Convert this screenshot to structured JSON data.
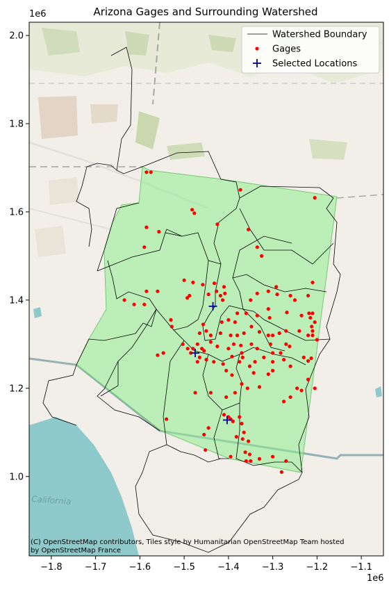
{
  "title": "Arizona Gages and Surrounding Watershed",
  "legend": {
    "placement": "top-right",
    "items": [
      {
        "label": "Watershed Boundary",
        "kind": "line",
        "color": "#000000"
      },
      {
        "label": "Gages",
        "kind": "dot",
        "color": "#ff0000"
      },
      {
        "label": "Selected Locations",
        "kind": "plus",
        "color": "#00008b"
      }
    ]
  },
  "axes": {
    "x_exponent": "1e6",
    "y_exponent": "1e6",
    "x_ticks": [
      "−1.8",
      "−1.7",
      "−1.6",
      "−1.5",
      "−1.4",
      "−1.3",
      "−1.2",
      "−1.1"
    ],
    "y_ticks": [
      "1.0",
      "1.2",
      "1.4",
      "1.6",
      "1.8",
      "2.0"
    ]
  },
  "attribution": {
    "line1": "(C) OpenStreetMap contributors, Tiles style by Humanitarian OpenStreetMap Team hosted",
    "line2": "by OpenStreetMap France"
  },
  "basemap_labels": {
    "california": "California"
  },
  "colors": {
    "state_fill": "#90ee90",
    "gage": "#ff0000",
    "selected": "#00008b",
    "water": "#8ec9cc",
    "land": "#f1efe8"
  },
  "chart_data": {
    "type": "scatter",
    "title": "Arizona Gages and Surrounding Watershed",
    "xlim": [
      -1.85,
      -1.05
    ],
    "ylim": [
      0.82,
      2.03
    ],
    "units_scale": "1e6",
    "series": [
      {
        "name": "Gages",
        "points": [
          [
            -1.585,
            1.69
          ],
          [
            -1.575,
            1.69
          ],
          [
            -1.373,
            1.65
          ],
          [
            -1.205,
            1.632
          ],
          [
            -1.482,
            1.605
          ],
          [
            -1.477,
            1.597
          ],
          [
            -1.585,
            1.565
          ],
          [
            -1.557,
            1.555
          ],
          [
            -1.425,
            1.572
          ],
          [
            -1.355,
            1.56
          ],
          [
            -1.59,
            1.52
          ],
          [
            -1.335,
            1.52
          ],
          [
            -1.325,
            1.5
          ],
          [
            -1.5,
            1.445
          ],
          [
            -1.48,
            1.44
          ],
          [
            -1.458,
            1.435
          ],
          [
            -1.432,
            1.438
          ],
          [
            -1.41,
            1.43
          ],
          [
            -1.445,
            1.413
          ],
          [
            -1.427,
            1.42
          ],
          [
            -1.418,
            1.41
          ],
          [
            -1.408,
            1.415
          ],
          [
            -1.413,
            1.4
          ],
          [
            -1.488,
            1.41
          ],
          [
            -1.493,
            1.405
          ],
          [
            -1.56,
            1.42
          ],
          [
            -1.585,
            1.42
          ],
          [
            -1.59,
            1.39
          ],
          [
            -1.635,
            1.4
          ],
          [
            -1.613,
            1.39
          ],
          [
            -1.292,
            1.43
          ],
          [
            -1.31,
            1.42
          ],
          [
            -1.335,
            1.415
          ],
          [
            -1.29,
            1.413
          ],
          [
            -1.26,
            1.41
          ],
          [
            -1.25,
            1.4
          ],
          [
            -1.22,
            1.41
          ],
          [
            -1.21,
            1.44
          ],
          [
            -1.35,
            1.4
          ],
          [
            -1.31,
            1.38
          ],
          [
            -1.268,
            1.372
          ],
          [
            -1.235,
            1.365
          ],
          [
            -1.218,
            1.37
          ],
          [
            -1.21,
            1.37
          ],
          [
            -1.38,
            1.37
          ],
          [
            -1.36,
            1.37
          ],
          [
            -1.335,
            1.365
          ],
          [
            -1.307,
            1.36
          ],
          [
            -1.385,
            1.35
          ],
          [
            -1.4,
            1.355
          ],
          [
            -1.415,
            1.35
          ],
          [
            -1.53,
            1.355
          ],
          [
            -1.528,
            1.34
          ],
          [
            -1.457,
            1.345
          ],
          [
            -1.45,
            1.33
          ],
          [
            -1.465,
            1.325
          ],
          [
            -1.44,
            1.32
          ],
          [
            -1.418,
            1.325
          ],
          [
            -1.395,
            1.32
          ],
          [
            -1.38,
            1.32
          ],
          [
            -1.365,
            1.325
          ],
          [
            -1.348,
            1.34
          ],
          [
            -1.33,
            1.328
          ],
          [
            -1.31,
            1.32
          ],
          [
            -1.3,
            1.32
          ],
          [
            -1.285,
            1.325
          ],
          [
            -1.27,
            1.33
          ],
          [
            -1.24,
            1.33
          ],
          [
            -1.22,
            1.32
          ],
          [
            -1.21,
            1.32
          ],
          [
            -1.2,
            1.31
          ],
          [
            -1.21,
            1.33
          ],
          [
            -1.212,
            1.34
          ],
          [
            -1.205,
            1.35
          ],
          [
            -1.215,
            1.36
          ],
          [
            -1.44,
            1.305
          ],
          [
            -1.46,
            1.29
          ],
          [
            -1.47,
            1.3
          ],
          [
            -1.425,
            1.295
          ],
          [
            -1.4,
            1.29
          ],
          [
            -1.388,
            1.3
          ],
          [
            -1.372,
            1.297
          ],
          [
            -1.348,
            1.3
          ],
          [
            -1.335,
            1.29
          ],
          [
            -1.305,
            1.3
          ],
          [
            -1.27,
            1.3
          ],
          [
            -1.262,
            1.295
          ],
          [
            -1.455,
            1.285
          ],
          [
            -1.48,
            1.29
          ],
          [
            -1.503,
            1.3
          ],
          [
            -1.492,
            1.29
          ],
          [
            -1.485,
            1.28
          ],
          [
            -1.465,
            1.27
          ],
          [
            -1.45,
            1.265
          ],
          [
            -1.433,
            1.26
          ],
          [
            -1.412,
            1.255
          ],
          [
            -1.392,
            1.272
          ],
          [
            -1.37,
            1.28
          ],
          [
            -1.368,
            1.27
          ],
          [
            -1.375,
            1.26
          ],
          [
            -1.32,
            1.27
          ],
          [
            -1.3,
            1.28
          ],
          [
            -1.282,
            1.28
          ],
          [
            -1.275,
            1.265
          ],
          [
            -1.26,
            1.25
          ],
          [
            -1.23,
            1.27
          ],
          [
            -1.22,
            1.262
          ],
          [
            -1.213,
            1.268
          ],
          [
            -1.3,
            1.26
          ],
          [
            -1.352,
            1.25
          ],
          [
            -1.34,
            1.26
          ],
          [
            -1.547,
            1.28
          ],
          [
            -1.56,
            1.275
          ],
          [
            -1.47,
            1.26
          ],
          [
            -1.3,
            1.24
          ],
          [
            -1.31,
            1.232
          ],
          [
            -1.343,
            1.235
          ],
          [
            -1.37,
            1.21
          ],
          [
            -1.392,
            1.23
          ],
          [
            -1.405,
            1.24
          ],
          [
            -1.357,
            1.2
          ],
          [
            -1.33,
            1.203
          ],
          [
            -1.245,
            1.2
          ],
          [
            -1.235,
            1.195
          ],
          [
            -1.26,
            1.18
          ],
          [
            -1.275,
            1.17
          ],
          [
            -1.205,
            1.2
          ],
          [
            -1.22,
            1.22
          ],
          [
            -1.475,
            1.19
          ],
          [
            -1.44,
            1.19
          ],
          [
            -1.405,
            1.18
          ],
          [
            -1.385,
            1.19
          ],
          [
            -1.54,
            1.13
          ],
          [
            -1.41,
            1.14
          ],
          [
            -1.4,
            1.135
          ],
          [
            -1.395,
            1.13
          ],
          [
            -1.39,
            1.125
          ],
          [
            -1.375,
            1.135
          ],
          [
            -1.37,
            1.12
          ],
          [
            -1.365,
            1.1
          ],
          [
            -1.382,
            1.09
          ],
          [
            -1.368,
            1.085
          ],
          [
            -1.355,
            1.08
          ],
          [
            -1.445,
            1.11
          ],
          [
            -1.455,
            1.095
          ],
          [
            -1.452,
            1.06
          ],
          [
            -1.395,
            1.045
          ],
          [
            -1.362,
            1.055
          ],
          [
            -1.352,
            1.05
          ],
          [
            -1.36,
            1.035
          ],
          [
            -1.35,
            1.035
          ],
          [
            -1.33,
            1.04
          ],
          [
            -1.3,
            1.045
          ],
          [
            -1.27,
            1.035
          ],
          [
            -1.28,
            1.01
          ]
        ]
      },
      {
        "name": "Selected Locations",
        "points": [
          [
            -1.435,
            1.386
          ],
          [
            -1.475,
            1.28
          ],
          [
            -1.403,
            1.128
          ]
        ]
      }
    ]
  }
}
